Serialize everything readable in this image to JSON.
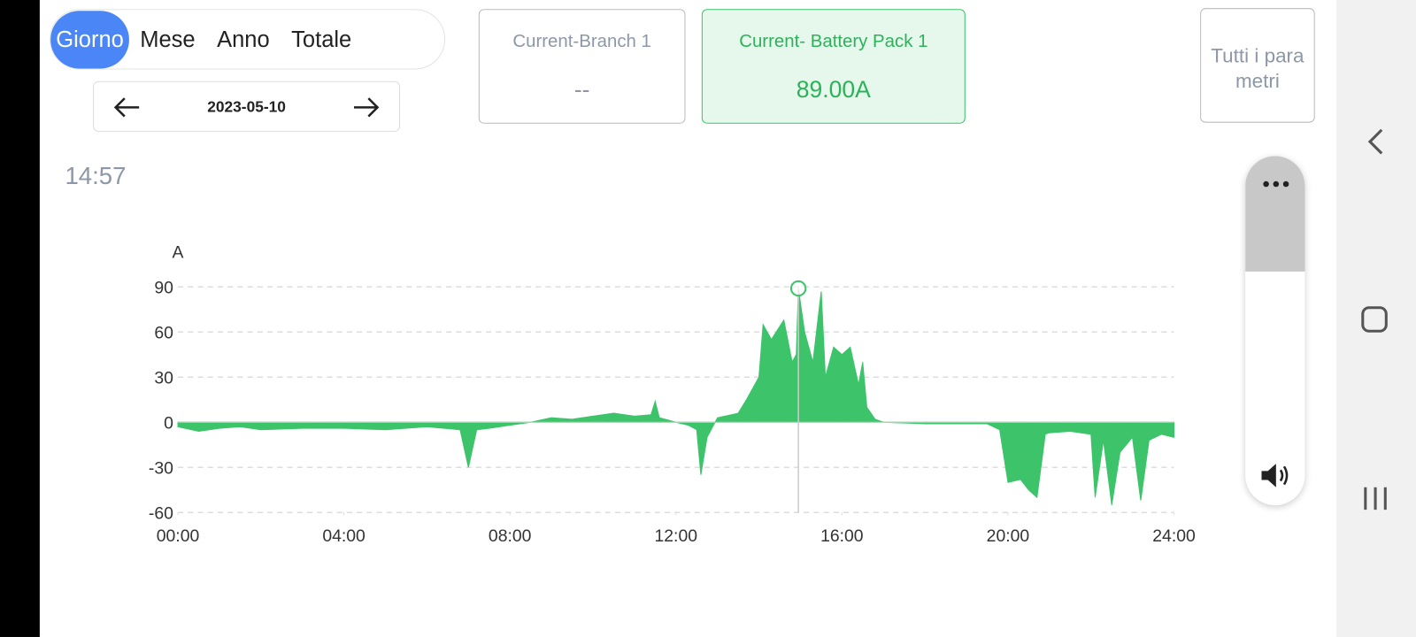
{
  "tabs": [
    {
      "label": "Giorno",
      "selected": true
    },
    {
      "label": "Mese",
      "selected": false
    },
    {
      "label": "Anno",
      "selected": false
    },
    {
      "label": "Totale",
      "selected": false
    }
  ],
  "date": "2023-05-10",
  "cards": [
    {
      "title": "Current-Branch 1",
      "value": "--",
      "selected": false
    },
    {
      "title": "Current- Battery Pack 1",
      "value": "89.00A",
      "selected": true
    }
  ],
  "all_params": [
    "Tutti i para",
    "metri"
  ],
  "time": "14:57",
  "chart_data": {
    "type": "area",
    "y_label": "A",
    "color": "#3dc46a",
    "x": [
      0,
      0.5,
      1,
      1.5,
      2,
      3,
      4,
      5,
      6,
      6.8,
      7.0,
      7.2,
      7.5,
      8.0,
      8.5,
      9,
      9.5,
      10,
      10.5,
      11,
      11.4,
      11.5,
      11.6,
      12,
      12.3,
      12.5,
      12.6,
      12.75,
      13,
      13.5,
      13.7,
      14,
      14.1,
      14.3,
      14.6,
      14.8,
      14.9,
      14.95,
      15.1,
      15.3,
      15.5,
      15.6,
      15.8,
      16.0,
      16.2,
      16.4,
      16.5,
      16.6,
      16.8,
      17,
      18,
      19,
      19.5,
      19.8,
      20,
      20.3,
      20.5,
      20.7,
      20.9,
      21.0,
      21.5,
      22,
      22.1,
      22.3,
      22.5,
      22.7,
      23.0,
      23.2,
      23.4,
      23.7,
      24
    ],
    "values": [
      -3,
      -6,
      -4,
      -3,
      -5,
      -4,
      -4,
      -5,
      -3,
      -5,
      -30,
      -5,
      -4,
      -2,
      0,
      3,
      2,
      4,
      6,
      4,
      5,
      14,
      3,
      0,
      -2,
      -5,
      -35,
      -10,
      3,
      6,
      15,
      30,
      65,
      55,
      68,
      40,
      45,
      89,
      60,
      40,
      87,
      30,
      50,
      45,
      50,
      25,
      40,
      10,
      2,
      0,
      -1,
      -1,
      -1,
      -5,
      -40,
      -38,
      -45,
      -50,
      -8,
      -7,
      -6,
      -8,
      -50,
      -12,
      -55,
      -20,
      -10,
      -52,
      -12,
      -8,
      -10
    ],
    "xlim": [
      0,
      24
    ],
    "ylim": [
      -60,
      90
    ],
    "xticks": [
      {
        "value": 0,
        "label": "00:00"
      },
      {
        "value": 4,
        "label": "04:00"
      },
      {
        "value": 8,
        "label": "08:00"
      },
      {
        "value": 12,
        "label": "12:00"
      },
      {
        "value": 16,
        "label": "16:00"
      },
      {
        "value": 20,
        "label": "20:00"
      },
      {
        "value": 24,
        "label": "24:00"
      }
    ],
    "yticks": [
      -60,
      -30,
      0,
      30,
      60,
      90
    ],
    "grid": true,
    "cursor": {
      "x": 14.95,
      "y": 89
    }
  }
}
